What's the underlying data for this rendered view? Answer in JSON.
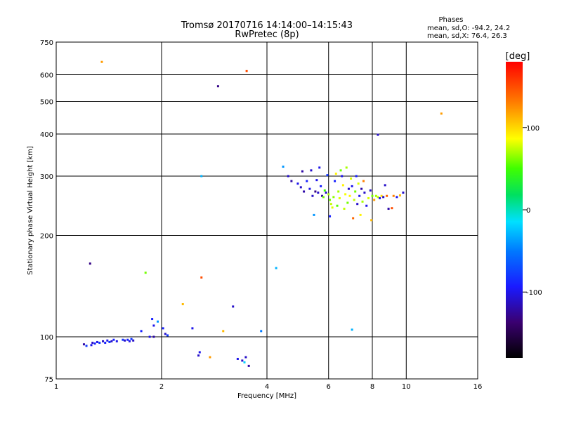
{
  "chart_data": {
    "type": "scatter",
    "title": "Tromsø 20170716 14:14:00–14:15:43",
    "subtitle": "RwPretec (8p)",
    "phases": {
      "heading": "Phases",
      "line_o": "mean, sd,O: -94.2, 24.2",
      "line_x": "mean, sd,X:  76.4, 26.3"
    },
    "xlabel": "Frequency [MHz]",
    "ylabel": "Stationary phase Virtual Height [km]",
    "xscale": "log",
    "yscale": "log",
    "xlim": [
      1,
      16
    ],
    "ylim": [
      75,
      750
    ],
    "xticks": [
      {
        "value": 1,
        "label": "1"
      },
      {
        "value": 2,
        "label": "2"
      },
      {
        "value": 4,
        "label": "4"
      },
      {
        "value": 6,
        "label": "6"
      },
      {
        "value": 8,
        "label": "8"
      },
      {
        "value": 10,
        "label": "10"
      },
      {
        "value": 16,
        "label": "16"
      }
    ],
    "yticks": [
      {
        "value": 75,
        "label": "75"
      },
      {
        "value": 100,
        "label": "100"
      },
      {
        "value": 200,
        "label": "200"
      },
      {
        "value": 300,
        "label": "300"
      },
      {
        "value": 400,
        "label": "400"
      },
      {
        "value": 500,
        "label": "500"
      },
      {
        "value": 600,
        "label": "600"
      },
      {
        "value": 750,
        "label": "750"
      }
    ],
    "grid": true,
    "colorbar": {
      "label": "[deg]",
      "range": [
        -180,
        180
      ],
      "ticks": [
        {
          "value": 100,
          "label": "100"
        },
        {
          "value": 0,
          "label": "0"
        },
        {
          "value": -100,
          "label": "-100"
        }
      ]
    },
    "points": [
      {
        "f": 1.35,
        "h": 655,
        "phase": 120
      },
      {
        "f": 2.9,
        "h": 555,
        "phase": -130
      },
      {
        "f": 3.5,
        "h": 615,
        "phase": 150
      },
      {
        "f": 12.6,
        "h": 460,
        "phase": 120
      },
      {
        "f": 8.3,
        "h": 398,
        "phase": -110
      },
      {
        "f": 2.6,
        "h": 300,
        "phase": -30
      },
      {
        "f": 1.25,
        "h": 165,
        "phase": -130
      },
      {
        "f": 1.8,
        "h": 155,
        "phase": 60
      },
      {
        "f": 2.6,
        "h": 150,
        "phase": 150
      },
      {
        "f": 4.25,
        "h": 160,
        "phase": -30
      },
      {
        "f": 2.3,
        "h": 125,
        "phase": 110
      },
      {
        "f": 3.2,
        "h": 123,
        "phase": -110
      },
      {
        "f": 1.88,
        "h": 113,
        "phase": -90
      },
      {
        "f": 1.95,
        "h": 111,
        "phase": -40
      },
      {
        "f": 1.9,
        "h": 108,
        "phase": -100
      },
      {
        "f": 2.02,
        "h": 106,
        "phase": -90
      },
      {
        "f": 2.45,
        "h": 106,
        "phase": -100
      },
      {
        "f": 3.0,
        "h": 104,
        "phase": 110
      },
      {
        "f": 3.85,
        "h": 104,
        "phase": -50
      },
      {
        "f": 1.75,
        "h": 104,
        "phase": -90
      },
      {
        "f": 2.05,
        "h": 102,
        "phase": -110
      },
      {
        "f": 2.08,
        "h": 101,
        "phase": -80
      },
      {
        "f": 1.85,
        "h": 100,
        "phase": -100
      },
      {
        "f": 1.9,
        "h": 100,
        "phase": -120
      },
      {
        "f": 1.2,
        "h": 95,
        "phase": -120
      },
      {
        "f": 1.22,
        "h": 94,
        "phase": -80
      },
      {
        "f": 1.26,
        "h": 94.5,
        "phase": -100
      },
      {
        "f": 1.27,
        "h": 96,
        "phase": -110
      },
      {
        "f": 1.29,
        "h": 95.5,
        "phase": -90
      },
      {
        "f": 1.31,
        "h": 96.5,
        "phase": -100
      },
      {
        "f": 1.33,
        "h": 96,
        "phase": -80
      },
      {
        "f": 1.36,
        "h": 97,
        "phase": -110
      },
      {
        "f": 1.38,
        "h": 96,
        "phase": -90
      },
      {
        "f": 1.4,
        "h": 97.5,
        "phase": -100
      },
      {
        "f": 1.42,
        "h": 96.5,
        "phase": -80
      },
      {
        "f": 1.44,
        "h": 97,
        "phase": -110
      },
      {
        "f": 1.46,
        "h": 98,
        "phase": -90
      },
      {
        "f": 1.49,
        "h": 97,
        "phase": -100
      },
      {
        "f": 1.55,
        "h": 98,
        "phase": -80
      },
      {
        "f": 1.57,
        "h": 97.5,
        "phase": -110
      },
      {
        "f": 1.6,
        "h": 98,
        "phase": -90
      },
      {
        "f": 1.62,
        "h": 97,
        "phase": -100
      },
      {
        "f": 1.64,
        "h": 98.5,
        "phase": -80
      },
      {
        "f": 1.66,
        "h": 97.5,
        "phase": -110
      },
      {
        "f": 2.55,
        "h": 88,
        "phase": -110
      },
      {
        "f": 2.57,
        "h": 90,
        "phase": -100
      },
      {
        "f": 2.75,
        "h": 87,
        "phase": 120
      },
      {
        "f": 3.3,
        "h": 86,
        "phase": -100
      },
      {
        "f": 3.4,
        "h": 85,
        "phase": -110
      },
      {
        "f": 3.45,
        "h": 84,
        "phase": -20
      },
      {
        "f": 3.48,
        "h": 87,
        "phase": -110
      },
      {
        "f": 3.55,
        "h": 82,
        "phase": -120
      },
      {
        "f": 4.45,
        "h": 320,
        "phase": -40
      },
      {
        "f": 4.6,
        "h": 300,
        "phase": -110
      },
      {
        "f": 4.7,
        "h": 290,
        "phase": -120
      },
      {
        "f": 4.9,
        "h": 285,
        "phase": -100
      },
      {
        "f": 5.0,
        "h": 278,
        "phase": -110
      },
      {
        "f": 5.1,
        "h": 270,
        "phase": -120
      },
      {
        "f": 5.2,
        "h": 290,
        "phase": -90
      },
      {
        "f": 5.3,
        "h": 275,
        "phase": -100
      },
      {
        "f": 5.4,
        "h": 262,
        "phase": -110
      },
      {
        "f": 5.5,
        "h": 270,
        "phase": -130
      },
      {
        "f": 5.55,
        "h": 292,
        "phase": -100
      },
      {
        "f": 5.6,
        "h": 268,
        "phase": -110
      },
      {
        "f": 5.7,
        "h": 280,
        "phase": -90
      },
      {
        "f": 5.75,
        "h": 262,
        "phase": -120
      },
      {
        "f": 5.8,
        "h": 260,
        "phase": 60
      },
      {
        "f": 5.85,
        "h": 272,
        "phase": 50
      },
      {
        "f": 5.9,
        "h": 268,
        "phase": -110
      },
      {
        "f": 5.95,
        "h": 302,
        "phase": -80
      },
      {
        "f": 5.05,
        "h": 310,
        "phase": -120
      },
      {
        "f": 5.35,
        "h": 312,
        "phase": -110
      },
      {
        "f": 5.65,
        "h": 318,
        "phase": -100
      },
      {
        "f": 6.0,
        "h": 265,
        "phase": 70
      },
      {
        "f": 6.05,
        "h": 255,
        "phase": 60
      },
      {
        "f": 6.1,
        "h": 248,
        "phase": 75
      },
      {
        "f": 6.15,
        "h": 242,
        "phase": 80
      },
      {
        "f": 6.2,
        "h": 260,
        "phase": 65
      },
      {
        "f": 6.25,
        "h": 290,
        "phase": -90
      },
      {
        "f": 6.3,
        "h": 305,
        "phase": 90
      },
      {
        "f": 6.35,
        "h": 245,
        "phase": 55
      },
      {
        "f": 6.4,
        "h": 270,
        "phase": 70
      },
      {
        "f": 6.45,
        "h": 258,
        "phase": 80
      },
      {
        "f": 6.5,
        "h": 312,
        "phase": 60
      },
      {
        "f": 6.55,
        "h": 300,
        "phase": -100
      },
      {
        "f": 6.6,
        "h": 282,
        "phase": 90
      },
      {
        "f": 6.65,
        "h": 240,
        "phase": 75
      },
      {
        "f": 6.7,
        "h": 265,
        "phase": 85
      },
      {
        "f": 6.75,
        "h": 318,
        "phase": 70
      },
      {
        "f": 6.8,
        "h": 250,
        "phase": 60
      },
      {
        "f": 6.85,
        "h": 275,
        "phase": -110
      },
      {
        "f": 6.9,
        "h": 262,
        "phase": 90
      },
      {
        "f": 6.95,
        "h": 295,
        "phase": 80
      },
      {
        "f": 7.0,
        "h": 280,
        "phase": -100
      },
      {
        "f": 7.05,
        "h": 225,
        "phase": 140
      },
      {
        "f": 7.1,
        "h": 255,
        "phase": 75
      },
      {
        "f": 7.15,
        "h": 270,
        "phase": 60
      },
      {
        "f": 7.2,
        "h": 300,
        "phase": -90
      },
      {
        "f": 7.25,
        "h": 248,
        "phase": -110
      },
      {
        "f": 7.3,
        "h": 285,
        "phase": 80
      },
      {
        "f": 7.35,
        "h": 262,
        "phase": -100
      },
      {
        "f": 7.4,
        "h": 230,
        "phase": 90
      },
      {
        "f": 7.45,
        "h": 275,
        "phase": -120
      },
      {
        "f": 7.5,
        "h": 252,
        "phase": 70
      },
      {
        "f": 7.55,
        "h": 290,
        "phase": 130
      },
      {
        "f": 7.6,
        "h": 268,
        "phase": -110
      },
      {
        "f": 7.7,
        "h": 245,
        "phase": -100
      },
      {
        "f": 7.8,
        "h": 258,
        "phase": 80
      },
      {
        "f": 7.9,
        "h": 272,
        "phase": -110
      },
      {
        "f": 8.0,
        "h": 262,
        "phase": 60
      },
      {
        "f": 8.1,
        "h": 255,
        "phase": 120
      },
      {
        "f": 8.2,
        "h": 262,
        "phase": 70
      },
      {
        "f": 8.3,
        "h": 260,
        "phase": 75
      },
      {
        "f": 8.4,
        "h": 258,
        "phase": -100
      },
      {
        "f": 8.5,
        "h": 262,
        "phase": 100
      },
      {
        "f": 8.6,
        "h": 260,
        "phase": -110
      },
      {
        "f": 8.8,
        "h": 262,
        "phase": 140
      },
      {
        "f": 8.9,
        "h": 240,
        "phase": -120
      },
      {
        "f": 9.1,
        "h": 241,
        "phase": 150
      },
      {
        "f": 9.2,
        "h": 262,
        "phase": 130
      },
      {
        "f": 9.4,
        "h": 260,
        "phase": -100
      },
      {
        "f": 9.6,
        "h": 263,
        "phase": 110
      },
      {
        "f": 9.8,
        "h": 268,
        "phase": -110
      },
      {
        "f": 8.7,
        "h": 282,
        "phase": -110
      },
      {
        "f": 7.95,
        "h": 222,
        "phase": 110
      },
      {
        "f": 6.05,
        "h": 228,
        "phase": -90
      },
      {
        "f": 5.45,
        "h": 230,
        "phase": -40
      },
      {
        "f": 7.0,
        "h": 105,
        "phase": -30
      }
    ]
  }
}
